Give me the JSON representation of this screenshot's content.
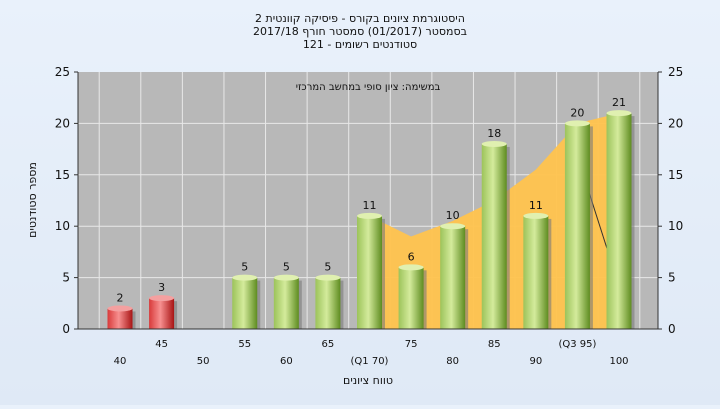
{
  "chart_data": {
    "type": "bar",
    "title_lines": [
      "היסטוגרמת ציונים בקורס - פיסיקה קוונטית 2",
      "בסמסטר  (01/2017)  סמסטר חורף 2017/18",
      "סטודנטים רשומים - 121"
    ],
    "annotation": "במשימה: ציון סופי במחשב המרכזי",
    "xlabel": "טווח ציונים",
    "ylabel": "מספר סטודנטים",
    "ylim": [
      0,
      25
    ],
    "yticks": [
      0,
      5,
      10,
      15,
      20,
      25
    ],
    "categories": [
      "40",
      "45",
      "50",
      "55",
      "60",
      "65",
      "(Q1 70)",
      "75",
      "80",
      "85",
      "90",
      "(Q3 95)",
      "100"
    ],
    "values": [
      2,
      3,
      0,
      5,
      5,
      5,
      11,
      6,
      10,
      18,
      11,
      20,
      21
    ],
    "value_labels": [
      "2",
      "3",
      "",
      "5",
      "5",
      "5",
      "11",
      "6",
      "10",
      "18",
      "11",
      "20",
      "21"
    ],
    "bar_colors": [
      "red",
      "red",
      "none",
      "green",
      "green",
      "green",
      "green",
      "green",
      "green",
      "green",
      "green",
      "green",
      "green"
    ],
    "area_series": {
      "values": [
        null,
        null,
        null,
        null,
        null,
        null,
        11,
        9,
        10.5,
        12.5,
        15.5,
        20,
        21
      ]
    },
    "grid": true,
    "legend": "none",
    "colors": {
      "plot_bg": "#b8b8b8",
      "grid": "#e8e8e8",
      "bar_green_light": "#c8e08a",
      "bar_green_dark": "#5c8a1e",
      "bar_red_light": "#f07070",
      "bar_red_dark": "#b01818",
      "area": "#ffc34d"
    }
  }
}
